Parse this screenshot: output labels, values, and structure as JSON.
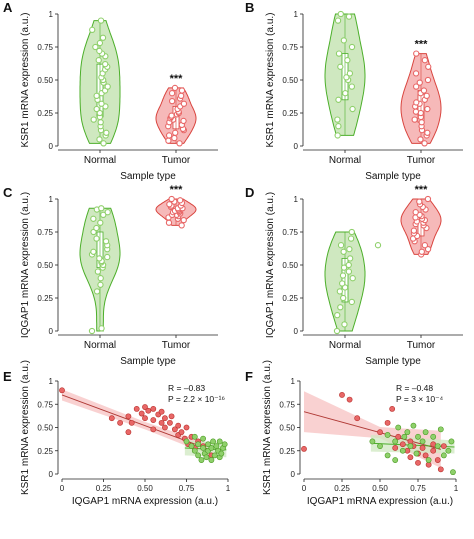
{
  "colors": {
    "normal_fill": "#cfe8c0",
    "normal_line": "#4caf2a",
    "normal_point": "#8fd06b",
    "tumor_fill": "#f6b9b9",
    "tumor_line": "#d9453f",
    "tumor_point": "#e86767",
    "reg_line": "#b03a36",
    "reg_band": "#f7c6c6"
  },
  "chart_data": [
    {
      "panel": "A",
      "type": "violin",
      "ylabel": "KSR1 mRNA expression (a.u.)",
      "xlabel": "Sample type",
      "ylim": [
        0,
        1
      ],
      "yticks": [
        "0",
        "0.25",
        "0.50",
        "0.75",
        "1"
      ],
      "categories": [
        "Normal",
        "Tumor"
      ],
      "significance": "***",
      "series": [
        {
          "name": "Normal",
          "values": [
            0.02,
            0.05,
            0.08,
            0.1,
            0.12,
            0.15,
            0.18,
            0.2,
            0.22,
            0.25,
            0.28,
            0.3,
            0.32,
            0.35,
            0.38,
            0.4,
            0.42,
            0.45,
            0.48,
            0.5,
            0.52,
            0.55,
            0.58,
            0.6,
            0.62,
            0.65,
            0.68,
            0.7,
            0.72,
            0.75,
            0.78,
            0.82,
            0.88,
            0.95
          ]
        },
        {
          "name": "Tumor",
          "values": [
            0.02,
            0.04,
            0.06,
            0.08,
            0.1,
            0.12,
            0.13,
            0.15,
            0.16,
            0.18,
            0.19,
            0.2,
            0.21,
            0.22,
            0.23,
            0.24,
            0.25,
            0.26,
            0.28,
            0.3,
            0.32,
            0.34,
            0.36,
            0.38,
            0.4,
            0.42,
            0.44
          ]
        }
      ]
    },
    {
      "panel": "B",
      "type": "violin",
      "ylabel": "KSR1 mRNA expression (a.u.)",
      "xlabel": "Sample type",
      "ylim": [
        0,
        1
      ],
      "yticks": [
        "0",
        "0.25",
        "0.50",
        "0.75",
        "1"
      ],
      "categories": [
        "Normal",
        "Tumor"
      ],
      "significance": "***",
      "series": [
        {
          "name": "Normal",
          "values": [
            0.08,
            0.15,
            0.2,
            0.28,
            0.35,
            0.4,
            0.45,
            0.5,
            0.52,
            0.55,
            0.6,
            0.65,
            0.7,
            0.75,
            0.8,
            0.95,
            0.98,
            1.0
          ]
        },
        {
          "name": "Tumor",
          "values": [
            0.02,
            0.05,
            0.08,
            0.1,
            0.12,
            0.15,
            0.18,
            0.2,
            0.22,
            0.25,
            0.26,
            0.28,
            0.3,
            0.32,
            0.33,
            0.35,
            0.38,
            0.4,
            0.42,
            0.45,
            0.48,
            0.5,
            0.55,
            0.6,
            0.65,
            0.7
          ]
        }
      ]
    },
    {
      "panel": "C",
      "type": "violin",
      "ylabel": "IQGAP1 mRNA expression (a.u.)",
      "xlabel": "Sample type",
      "ylim": [
        0,
        1
      ],
      "yticks": [
        "0",
        "0.25",
        "0.50",
        "0.75",
        "1"
      ],
      "categories": [
        "Normal",
        "Tumor"
      ],
      "significance": "***",
      "series": [
        {
          "name": "Normal",
          "values": [
            0.0,
            0.02,
            0.3,
            0.35,
            0.4,
            0.45,
            0.48,
            0.5,
            0.52,
            0.53,
            0.55,
            0.56,
            0.58,
            0.6,
            0.62,
            0.65,
            0.68,
            0.7,
            0.75,
            0.78,
            0.82,
            0.85,
            0.88,
            0.9,
            0.92,
            0.93
          ]
        },
        {
          "name": "Tumor",
          "values": [
            0.8,
            0.82,
            0.84,
            0.85,
            0.86,
            0.87,
            0.88,
            0.88,
            0.89,
            0.9,
            0.9,
            0.91,
            0.91,
            0.92,
            0.92,
            0.93,
            0.93,
            0.94,
            0.94,
            0.95,
            0.95,
            0.96,
            0.97,
            0.98,
            0.99,
            1.0
          ]
        }
      ]
    },
    {
      "panel": "D",
      "type": "violin",
      "ylabel": "IQGAP1 mRNA expression (a.u.)",
      "xlabel": "Sample type",
      "ylim": [
        0,
        1
      ],
      "yticks": [
        "0",
        "0.25",
        "0.50",
        "0.75",
        "1"
      ],
      "categories": [
        "Normal",
        "Tumor"
      ],
      "significance": "***",
      "series": [
        {
          "name": "Normal",
          "values": [
            0.0,
            0.05,
            0.12,
            0.18,
            0.22,
            0.25,
            0.3,
            0.33,
            0.36,
            0.4,
            0.42,
            0.45,
            0.48,
            0.5,
            0.55,
            0.6,
            0.62,
            0.65,
            0.7,
            0.75
          ]
        },
        {
          "name": "Tumor",
          "values": [
            0.58,
            0.6,
            0.62,
            0.65,
            0.68,
            0.7,
            0.72,
            0.74,
            0.76,
            0.78,
            0.8,
            0.81,
            0.82,
            0.83,
            0.84,
            0.85,
            0.86,
            0.87,
            0.88,
            0.9,
            0.92,
            0.94,
            0.96,
            0.98,
            1.0
          ]
        }
      ],
      "outlier": {
        "x_label": "Normal",
        "value": 0.65
      }
    },
    {
      "panel": "E",
      "type": "scatter",
      "xlabel": "IQGAP1 mRNA expression (a.u.)",
      "ylabel": "KSR1 mRNA expression (a.u.)",
      "xlim": [
        0,
        1
      ],
      "ylim": [
        0,
        1
      ],
      "xticks": [
        "0",
        "0.25",
        "0.50",
        "0.75",
        "1"
      ],
      "yticks": [
        "0",
        "0.25",
        "0.50",
        "0.75",
        "1"
      ],
      "stat_r": "R = –0.83",
      "stat_p": "P = 2.2 × 10⁻¹⁶",
      "fit": {
        "intercept": 0.85,
        "slope": -0.66
      },
      "series": [
        {
          "name": "Tumor",
          "points": [
            [
              0.0,
              0.9
            ],
            [
              0.3,
              0.6
            ],
            [
              0.35,
              0.55
            ],
            [
              0.4,
              0.62
            ],
            [
              0.45,
              0.7
            ],
            [
              0.48,
              0.65
            ],
            [
              0.5,
              0.72
            ],
            [
              0.5,
              0.6
            ],
            [
              0.52,
              0.68
            ],
            [
              0.55,
              0.58
            ],
            [
              0.55,
              0.7
            ],
            [
              0.58,
              0.64
            ],
            [
              0.6,
              0.55
            ],
            [
              0.6,
              0.67
            ],
            [
              0.62,
              0.6
            ],
            [
              0.62,
              0.5
            ],
            [
              0.65,
              0.55
            ],
            [
              0.66,
              0.62
            ],
            [
              0.68,
              0.48
            ],
            [
              0.7,
              0.42
            ],
            [
              0.7,
              0.52
            ],
            [
              0.72,
              0.45
            ],
            [
              0.74,
              0.38
            ],
            [
              0.75,
              0.5
            ],
            [
              0.76,
              0.32
            ],
            [
              0.78,
              0.4
            ],
            [
              0.8,
              0.28
            ],
            [
              0.82,
              0.35
            ],
            [
              0.85,
              0.3
            ],
            [
              0.9,
              0.2
            ],
            [
              0.55,
              0.48
            ],
            [
              0.42,
              0.55
            ],
            [
              0.4,
              0.45
            ]
          ]
        },
        {
          "name": "Normal",
          "points": [
            [
              0.75,
              0.35
            ],
            [
              0.78,
              0.3
            ],
            [
              0.8,
              0.25
            ],
            [
              0.8,
              0.4
            ],
            [
              0.82,
              0.2
            ],
            [
              0.82,
              0.32
            ],
            [
              0.84,
              0.15
            ],
            [
              0.85,
              0.28
            ],
            [
              0.85,
              0.38
            ],
            [
              0.86,
              0.22
            ],
            [
              0.87,
              0.18
            ],
            [
              0.88,
              0.25
            ],
            [
              0.88,
              0.32
            ],
            [
              0.9,
              0.15
            ],
            [
              0.9,
              0.28
            ],
            [
              0.91,
              0.35
            ],
            [
              0.92,
              0.2
            ],
            [
              0.93,
              0.3
            ],
            [
              0.94,
              0.25
            ],
            [
              0.95,
              0.18
            ],
            [
              0.95,
              0.35
            ],
            [
              0.96,
              0.22
            ],
            [
              0.97,
              0.28
            ],
            [
              0.98,
              0.32
            ]
          ]
        }
      ]
    },
    {
      "panel": "F",
      "type": "scatter",
      "xlabel": "IQGAP1 mRNA expression (a.u.)",
      "ylabel": "KSR1 mRNA expression (a.u.)",
      "xlim": [
        0,
        1
      ],
      "ylim": [
        0,
        1
      ],
      "xticks": [
        "0",
        "0.25",
        "0.50",
        "0.75",
        "1"
      ],
      "yticks": [
        "0",
        "0.25",
        "0.50",
        "0.75",
        "1"
      ],
      "stat_r": "R = –0.48",
      "stat_p": "P = 3 × 10⁻⁴",
      "fit": {
        "intercept": 0.67,
        "slope": -0.45
      },
      "series": [
        {
          "name": "Tumor",
          "points": [
            [
              0.0,
              0.27
            ],
            [
              0.25,
              0.85
            ],
            [
              0.3,
              0.8
            ],
            [
              0.35,
              0.6
            ],
            [
              0.5,
              0.45
            ],
            [
              0.55,
              0.55
            ],
            [
              0.58,
              0.7
            ],
            [
              0.6,
              0.28
            ],
            [
              0.62,
              0.4
            ],
            [
              0.65,
              0.32
            ],
            [
              0.68,
              0.25
            ],
            [
              0.7,
              0.18
            ],
            [
              0.7,
              0.35
            ],
            [
              0.72,
              0.3
            ],
            [
              0.75,
              0.12
            ],
            [
              0.75,
              0.22
            ],
            [
              0.78,
              0.28
            ],
            [
              0.8,
              0.2
            ],
            [
              0.82,
              0.1
            ],
            [
              0.85,
              0.25
            ],
            [
              0.85,
              0.32
            ],
            [
              0.88,
              0.15
            ],
            [
              0.9,
              0.05
            ],
            [
              0.92,
              0.3
            ]
          ]
        },
        {
          "name": "Normal",
          "points": [
            [
              0.45,
              0.35
            ],
            [
              0.5,
              0.3
            ],
            [
              0.55,
              0.2
            ],
            [
              0.55,
              0.42
            ],
            [
              0.6,
              0.35
            ],
            [
              0.6,
              0.15
            ],
            [
              0.62,
              0.5
            ],
            [
              0.65,
              0.25
            ],
            [
              0.66,
              0.4
            ],
            [
              0.68,
              0.45
            ],
            [
              0.7,
              0.3
            ],
            [
              0.72,
              0.52
            ],
            [
              0.74,
              0.22
            ],
            [
              0.75,
              0.4
            ],
            [
              0.78,
              0.35
            ],
            [
              0.8,
              0.45
            ],
            [
              0.82,
              0.15
            ],
            [
              0.85,
              0.4
            ],
            [
              0.88,
              0.3
            ],
            [
              0.9,
              0.48
            ],
            [
              0.92,
              0.2
            ],
            [
              0.95,
              0.25
            ],
            [
              0.98,
              0.02
            ],
            [
              0.97,
              0.35
            ]
          ]
        }
      ]
    }
  ]
}
